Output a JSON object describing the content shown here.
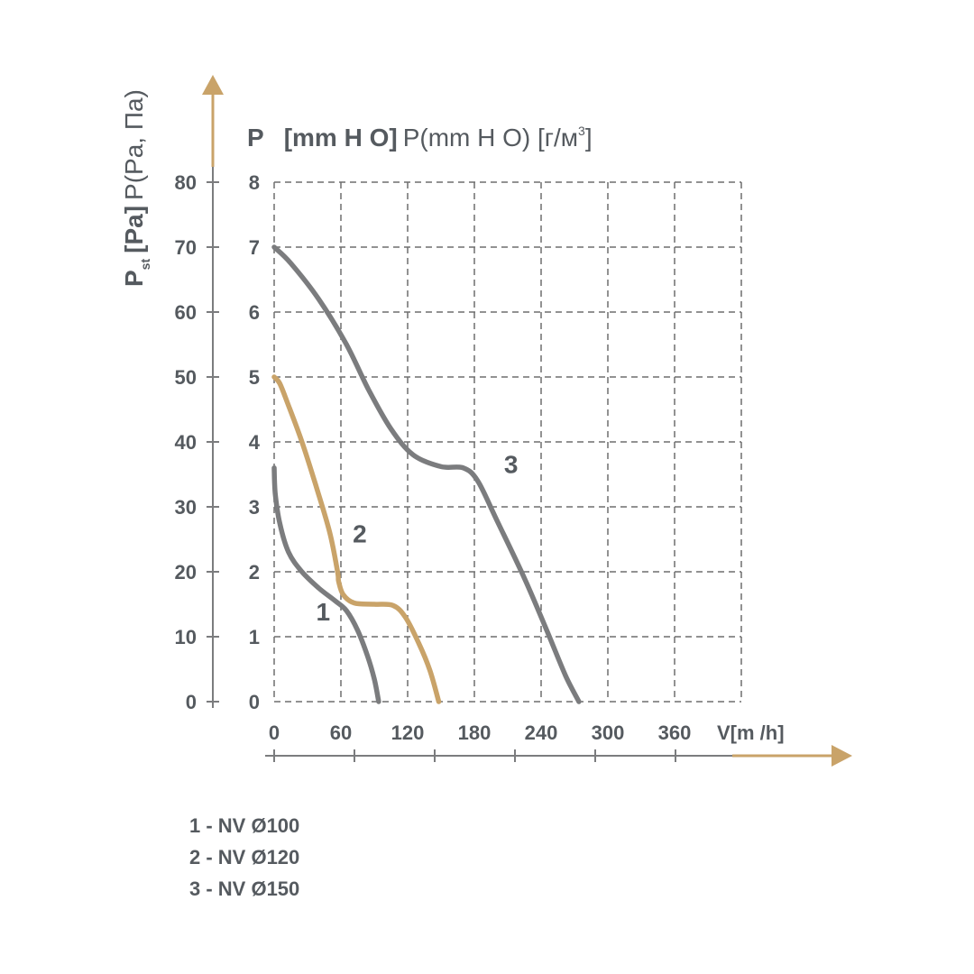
{
  "chart_data": {
    "type": "line",
    "y_title_pa": {
      "symbol": "P",
      "subscript": "st",
      "unit": "[Pa]",
      "alt": "P(Pa, Па)"
    },
    "y_title_mm": {
      "symbol": "P",
      "unit": "[mm H O]",
      "alt": "P(mm H O) [г/м",
      "alt_sup": "3",
      "alt_end": "]"
    },
    "x_title": "V[m /h]",
    "xlim": [
      0,
      420
    ],
    "ylim_pa": [
      0,
      80
    ],
    "ylim_mm": [
      0,
      8
    ],
    "x_ticks": [
      "0",
      "60",
      "120",
      "180",
      "240",
      "300",
      "360"
    ],
    "y_ticks_pa": [
      "0",
      "10",
      "20",
      "30",
      "40",
      "50",
      "60",
      "70",
      "80"
    ],
    "y_ticks_mm": [
      "0",
      "1",
      "2",
      "3",
      "4",
      "5",
      "6",
      "7",
      "8"
    ],
    "grid": true,
    "series": [
      {
        "name": "1",
        "color": "#7b7c7e",
        "points": [
          [
            0,
            36
          ],
          [
            1,
            32
          ],
          [
            5,
            27.5
          ],
          [
            13,
            23
          ],
          [
            25,
            20
          ],
          [
            40,
            17.5
          ],
          [
            55,
            15.5
          ],
          [
            65,
            14
          ],
          [
            75,
            11
          ],
          [
            84,
            7
          ],
          [
            90,
            3.5
          ],
          [
            94,
            0
          ]
        ]
      },
      {
        "name": "2",
        "color": "#c9a369",
        "points": [
          [
            0,
            50
          ],
          [
            5,
            49
          ],
          [
            12,
            46
          ],
          [
            25,
            40
          ],
          [
            38,
            33
          ],
          [
            50,
            26
          ],
          [
            57,
            20
          ],
          [
            58,
            18.5
          ],
          [
            62,
            16.5
          ],
          [
            72,
            15.2
          ],
          [
            90,
            15
          ],
          [
            107,
            14.8
          ],
          [
            118,
            13
          ],
          [
            130,
            9
          ],
          [
            140,
            4.8
          ],
          [
            148,
            0
          ]
        ]
      },
      {
        "name": "3",
        "color": "#7b7c7e",
        "points": [
          [
            0,
            70
          ],
          [
            15,
            67.5
          ],
          [
            40,
            62
          ],
          [
            65,
            55
          ],
          [
            85,
            48
          ],
          [
            105,
            42
          ],
          [
            125,
            38
          ],
          [
            150,
            36.2
          ],
          [
            170,
            36
          ],
          [
            183,
            34
          ],
          [
            200,
            28
          ],
          [
            225,
            19
          ],
          [
            245,
            11
          ],
          [
            262,
            4
          ],
          [
            274,
            0
          ]
        ]
      }
    ],
    "series_labels": [
      {
        "text": "1",
        "x": 44,
        "y": 12.5
      },
      {
        "text": "2",
        "x": 77,
        "y": 24.5
      },
      {
        "text": "3",
        "x": 213,
        "y": 35.2
      }
    ],
    "arrow_color": "#c9a369",
    "line_color": "#7b7c7e",
    "text_color": "#555a5f",
    "grid_color": "#6e6e6e"
  },
  "legend": [
    "1 - NV Ø100",
    "2 - NV Ø120",
    "3 - NV Ø150"
  ]
}
